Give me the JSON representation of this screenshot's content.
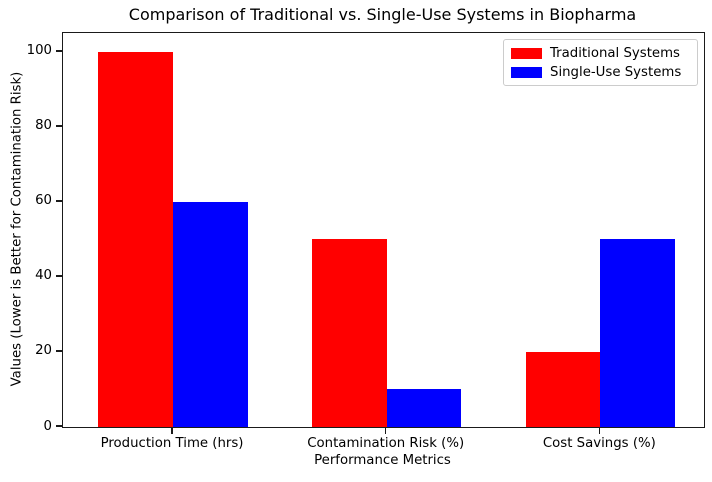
{
  "chart_data": {
    "type": "bar",
    "title": "Comparison of Traditional vs. Single-Use Systems in Biopharma",
    "xlabel": "Performance Metrics",
    "ylabel": "Values (Lower is Better for Contamination Risk)",
    "categories": [
      "Production Time (hrs)",
      "Contamination Risk (%)",
      "Cost Savings (%)"
    ],
    "series": [
      {
        "name": "Traditional Systems",
        "color": "#ff0000",
        "values": [
          100,
          50,
          20
        ]
      },
      {
        "name": "Single-Use Systems",
        "color": "#0000ff",
        "values": [
          60,
          10,
          50
        ]
      }
    ],
    "yticks": [
      0,
      20,
      40,
      60,
      80,
      100
    ],
    "ylim": [
      0,
      105
    ],
    "bar_width": 0.35,
    "grid": false,
    "legend_position": "upper right"
  }
}
